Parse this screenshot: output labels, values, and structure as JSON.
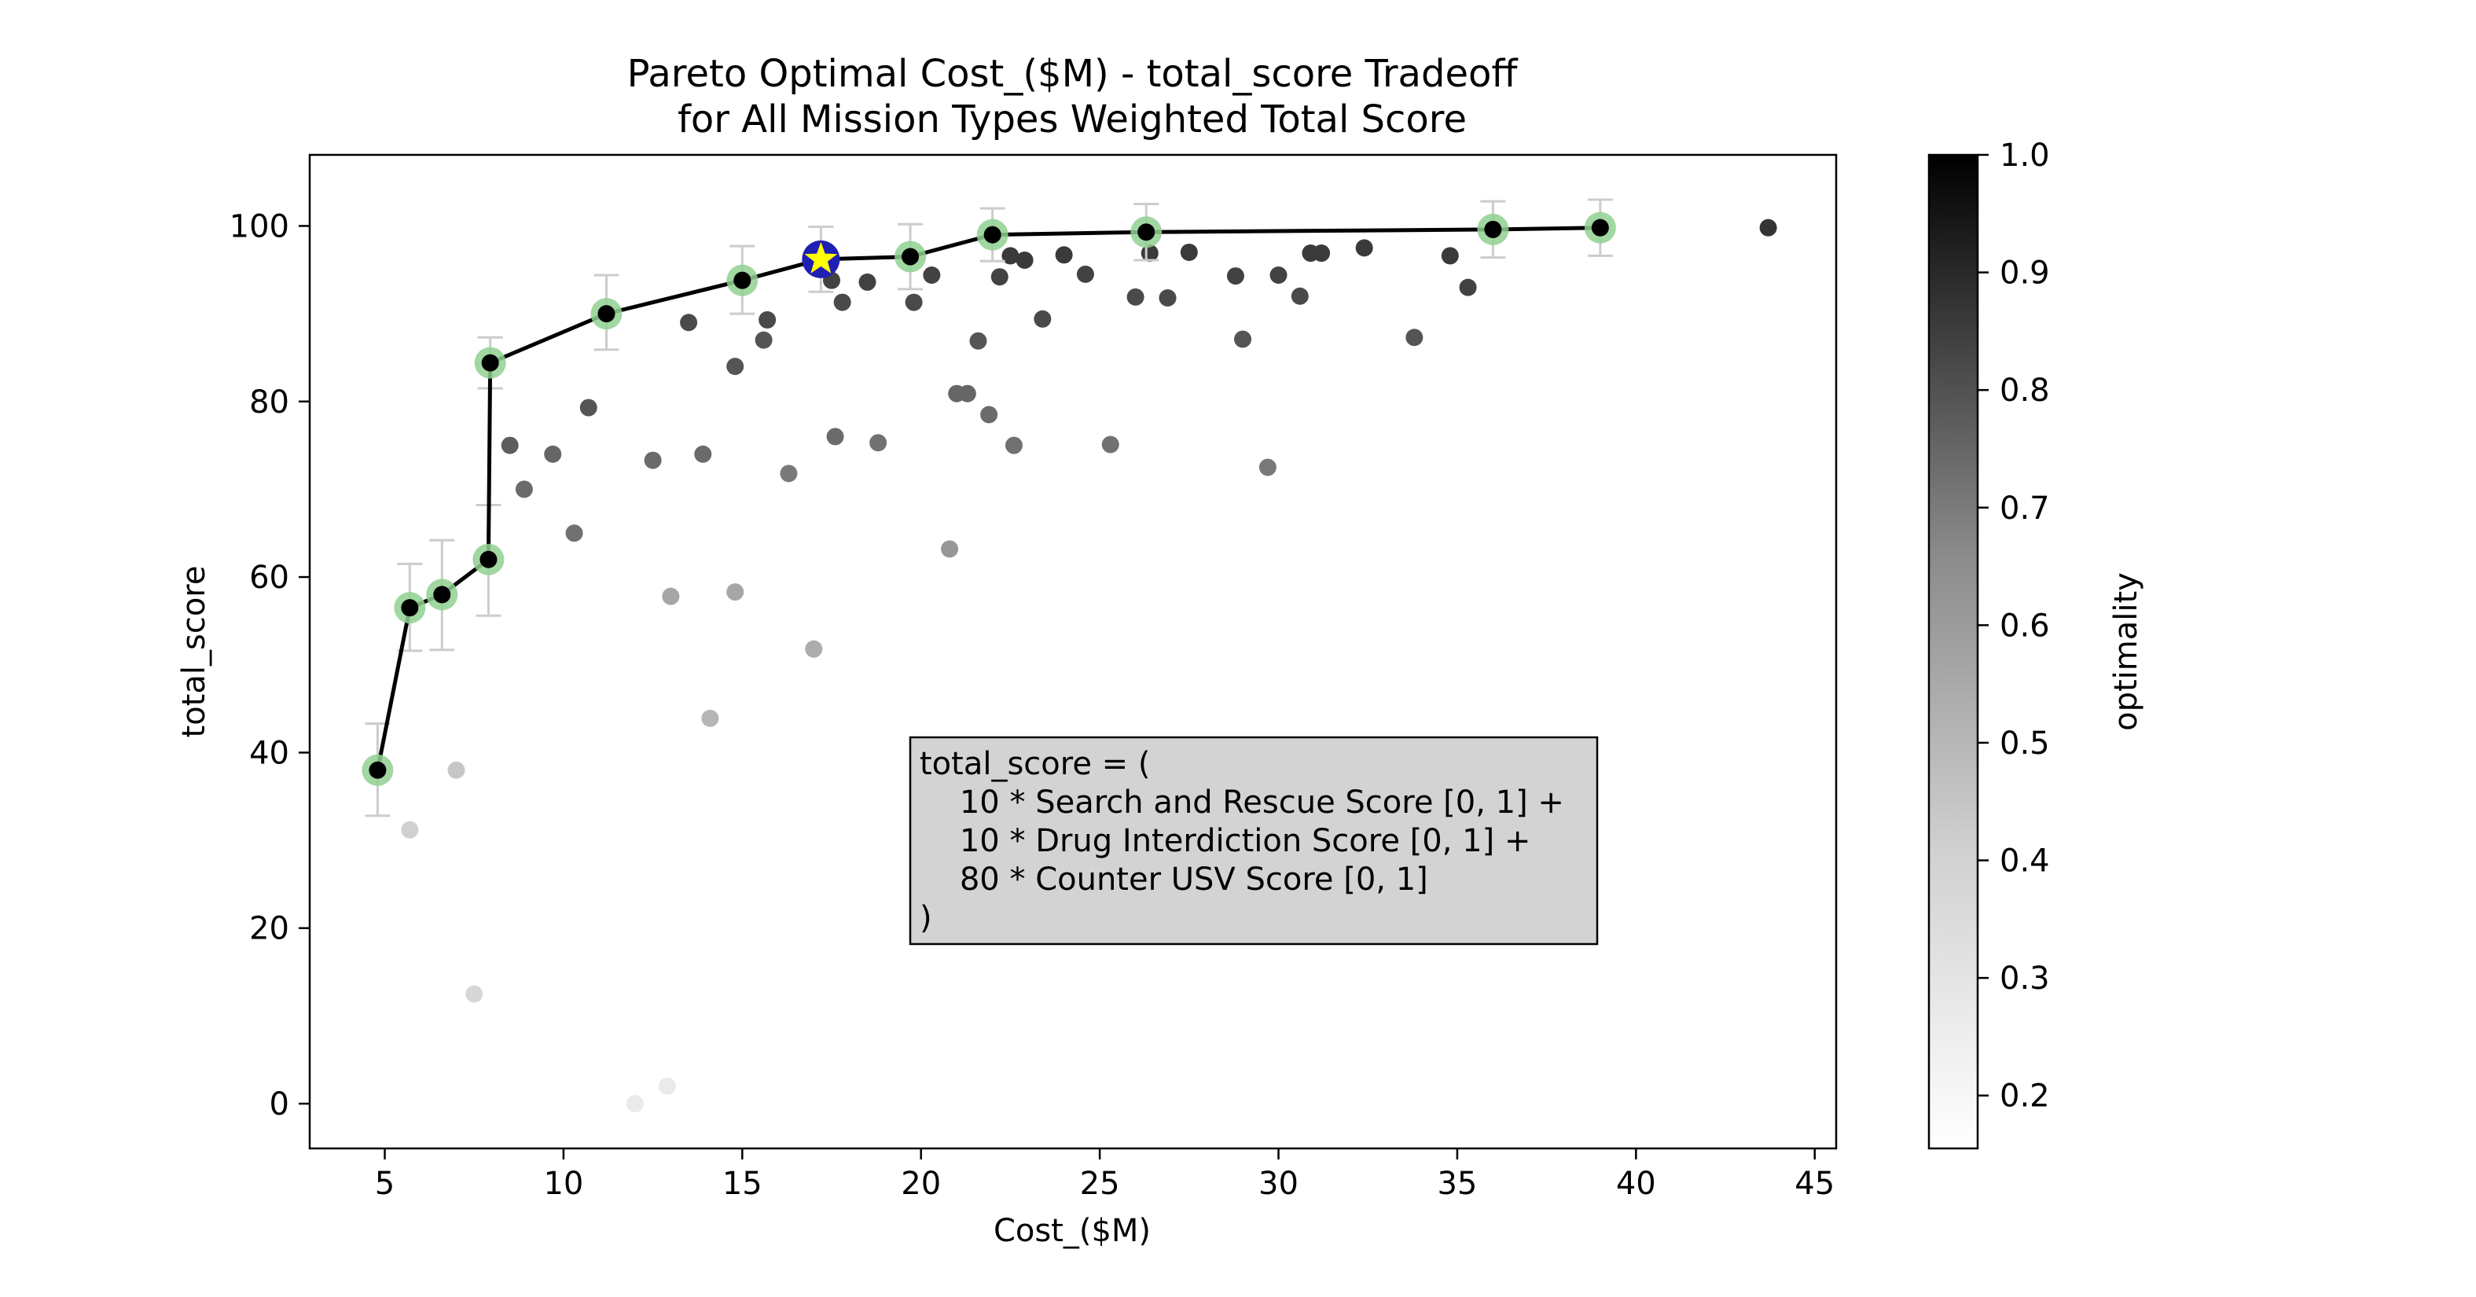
{
  "chart_data": {
    "type": "scatter",
    "title_lines": [
      "Pareto Optimal Cost_($M) - total_score Tradeoff",
      "for All Mission Types Weighted Total Score"
    ],
    "xlabel": "Cost_($M)",
    "ylabel": "total_score",
    "xlim": [
      2.9,
      45.6
    ],
    "ylim": [
      -5.1,
      108.1
    ],
    "x_ticks": [
      5,
      10,
      15,
      20,
      25,
      30,
      35,
      40,
      45
    ],
    "y_ticks": [
      0,
      20,
      40,
      60,
      80,
      100
    ],
    "grid": false,
    "colorbar": {
      "label": "optimality",
      "range": [
        0.155,
        1.0
      ],
      "ticks": [
        0.2,
        0.3,
        0.4,
        0.5,
        0.6,
        0.7,
        0.8,
        0.9,
        1.0
      ],
      "colormap": "Greys"
    },
    "annotation_lines": [
      "total_score = (",
      "    10 * Search and Rescue Score [0, 1] +",
      "    10 * Drug Interdiction Score [0, 1] +",
      "    80 * Counter USV Score [0, 1]",
      ")"
    ],
    "annotation_fill": "#d3d3d3",
    "pareto_front": {
      "points": [
        {
          "x": 4.8,
          "y": 38.0,
          "y_low": 32.8,
          "y_high": 43.3
        },
        {
          "x": 5.7,
          "y": 56.5,
          "y_low": 51.6,
          "y_high": 61.5
        },
        {
          "x": 6.6,
          "y": 58.0,
          "y_low": 51.7,
          "y_high": 64.2
        },
        {
          "x": 7.9,
          "y": 62.0,
          "y_low": 55.6,
          "y_high": 68.2
        },
        {
          "x": 7.95,
          "y": 84.4,
          "y_low": 81.5,
          "y_high": 87.3
        },
        {
          "x": 11.2,
          "y": 90.0,
          "y_low": 85.9,
          "y_high": 94.4
        },
        {
          "x": 15.0,
          "y": 93.8,
          "y_low": 90.0,
          "y_high": 97.7
        },
        {
          "x": 17.2,
          "y": 96.2,
          "y_low": 92.5,
          "y_high": 99.9
        },
        {
          "x": 19.7,
          "y": 96.5,
          "y_low": 92.8,
          "y_high": 100.2
        },
        {
          "x": 22.0,
          "y": 99.0,
          "y_low": 96.0,
          "y_high": 102.0
        },
        {
          "x": 26.3,
          "y": 99.3,
          "y_low": 96.1,
          "y_high": 102.5
        },
        {
          "x": 36.0,
          "y": 99.6,
          "y_low": 96.4,
          "y_high": 102.8
        },
        {
          "x": 39.0,
          "y": 99.8,
          "y_low": 96.6,
          "y_high": 103.0
        }
      ],
      "line_color": "#000000",
      "marker_halo_color": "#90d090",
      "errorbar_color": "#cccccc"
    },
    "highlighted_point": {
      "x": 17.2,
      "y": 96.2,
      "marker": "star",
      "fill": "#1f1fb4",
      "star_color": "#ffff00"
    },
    "scatter_points": [
      {
        "x": 5.7,
        "y": 31.2,
        "optimality": 0.27
      },
      {
        "x": 7.0,
        "y": 38.0,
        "optimality": 0.3
      },
      {
        "x": 7.5,
        "y": 12.5,
        "optimality": 0.25
      },
      {
        "x": 8.5,
        "y": 75.0,
        "optimality": 0.65
      },
      {
        "x": 8.9,
        "y": 70.0,
        "optimality": 0.6
      },
      {
        "x": 9.7,
        "y": 74.0,
        "optimality": 0.62
      },
      {
        "x": 10.3,
        "y": 65.0,
        "optimality": 0.58
      },
      {
        "x": 10.7,
        "y": 79.3,
        "optimality": 0.68
      },
      {
        "x": 12.0,
        "y": 0.0,
        "optimality": 0.2
      },
      {
        "x": 12.5,
        "y": 73.3,
        "optimality": 0.6
      },
      {
        "x": 12.9,
        "y": 2.0,
        "optimality": 0.2
      },
      {
        "x": 13.0,
        "y": 57.8,
        "optimality": 0.4
      },
      {
        "x": 13.5,
        "y": 89.0,
        "optimality": 0.72
      },
      {
        "x": 13.9,
        "y": 74.0,
        "optimality": 0.6
      },
      {
        "x": 14.1,
        "y": 43.9,
        "optimality": 0.35
      },
      {
        "x": 14.8,
        "y": 58.3,
        "optimality": 0.4
      },
      {
        "x": 14.8,
        "y": 84.0,
        "optimality": 0.68
      },
      {
        "x": 15.6,
        "y": 87.0,
        "optimality": 0.68
      },
      {
        "x": 15.7,
        "y": 89.3,
        "optimality": 0.72
      },
      {
        "x": 16.3,
        "y": 71.8,
        "optimality": 0.55
      },
      {
        "x": 17.0,
        "y": 51.8,
        "optimality": 0.38
      },
      {
        "x": 17.5,
        "y": 93.8,
        "optimality": 0.75
      },
      {
        "x": 17.6,
        "y": 76.0,
        "optimality": 0.6
      },
      {
        "x": 17.8,
        "y": 91.3,
        "optimality": 0.72
      },
      {
        "x": 18.5,
        "y": 93.6,
        "optimality": 0.75
      },
      {
        "x": 18.8,
        "y": 75.3,
        "optimality": 0.58
      },
      {
        "x": 19.8,
        "y": 91.3,
        "optimality": 0.72
      },
      {
        "x": 20.3,
        "y": 94.4,
        "optimality": 0.75
      },
      {
        "x": 20.8,
        "y": 63.2,
        "optimality": 0.45
      },
      {
        "x": 21.0,
        "y": 80.9,
        "optimality": 0.62
      },
      {
        "x": 21.3,
        "y": 80.9,
        "optimality": 0.62
      },
      {
        "x": 21.6,
        "y": 86.9,
        "optimality": 0.68
      },
      {
        "x": 21.9,
        "y": 78.5,
        "optimality": 0.6
      },
      {
        "x": 22.2,
        "y": 94.2,
        "optimality": 0.75
      },
      {
        "x": 22.5,
        "y": 96.6,
        "optimality": 0.78
      },
      {
        "x": 22.6,
        "y": 75.0,
        "optimality": 0.58
      },
      {
        "x": 22.9,
        "y": 96.1,
        "optimality": 0.78
      },
      {
        "x": 23.4,
        "y": 89.4,
        "optimality": 0.72
      },
      {
        "x": 24.0,
        "y": 96.7,
        "optimality": 0.78
      },
      {
        "x": 24.6,
        "y": 94.5,
        "optimality": 0.75
      },
      {
        "x": 25.3,
        "y": 75.1,
        "optimality": 0.58
      },
      {
        "x": 26.0,
        "y": 91.9,
        "optimality": 0.72
      },
      {
        "x": 26.4,
        "y": 96.9,
        "optimality": 0.78
      },
      {
        "x": 26.9,
        "y": 91.8,
        "optimality": 0.72
      },
      {
        "x": 27.5,
        "y": 97.0,
        "optimality": 0.78
      },
      {
        "x": 28.8,
        "y": 94.3,
        "optimality": 0.75
      },
      {
        "x": 29.0,
        "y": 87.1,
        "optimality": 0.68
      },
      {
        "x": 29.7,
        "y": 72.5,
        "optimality": 0.55
      },
      {
        "x": 30.0,
        "y": 94.4,
        "optimality": 0.75
      },
      {
        "x": 30.6,
        "y": 92.0,
        "optimality": 0.72
      },
      {
        "x": 30.9,
        "y": 96.9,
        "optimality": 0.78
      },
      {
        "x": 31.2,
        "y": 96.9,
        "optimality": 0.78
      },
      {
        "x": 32.4,
        "y": 97.5,
        "optimality": 0.78
      },
      {
        "x": 33.8,
        "y": 87.3,
        "optimality": 0.68
      },
      {
        "x": 34.8,
        "y": 96.6,
        "optimality": 0.78
      },
      {
        "x": 35.3,
        "y": 93.0,
        "optimality": 0.75
      },
      {
        "x": 43.7,
        "y": 99.8,
        "optimality": 0.8
      }
    ]
  }
}
